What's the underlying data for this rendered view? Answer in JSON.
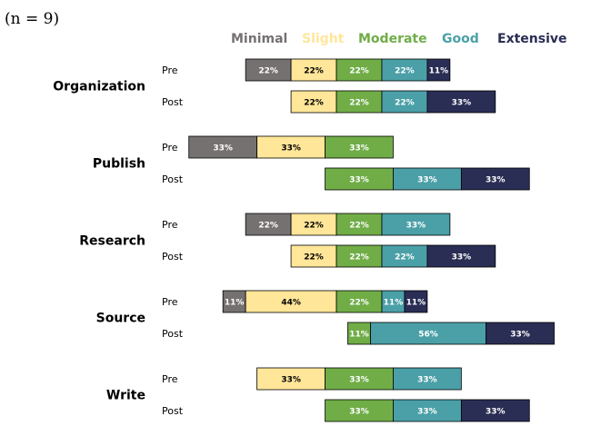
{
  "chart_data": {
    "type": "bar",
    "orientation": "horizontal",
    "stacked": true,
    "diverging": true,
    "sample_size_label": "(n = 9)",
    "categories": [
      "Minimal",
      "Slight",
      "Moderate",
      "Good",
      "Extensive"
    ],
    "colors": {
      "Minimal": "#767171",
      "Slight": "#FFE699",
      "Moderate": "#70AD47",
      "Good": "#4BA0A8",
      "Extensive": "#2A2D54"
    },
    "label_colors": {
      "Minimal": "#ffffff",
      "Slight": "#000000",
      "Moderate": "#ffffff",
      "Good": "#ffffff",
      "Extensive": "#ffffff"
    },
    "legend_placement": "top",
    "groups": [
      {
        "name": "Organization",
        "rows": [
          {
            "label": "Pre",
            "values": [
              22,
              22,
              22,
              22,
              11
            ]
          },
          {
            "label": "Post",
            "values": [
              0,
              22,
              22,
              22,
              33
            ]
          }
        ]
      },
      {
        "name": "Publish",
        "rows": [
          {
            "label": "Pre",
            "values": [
              33,
              33,
              33,
              0,
              0
            ]
          },
          {
            "label": "Post",
            "values": [
              0,
              0,
              33,
              33,
              33
            ]
          }
        ]
      },
      {
        "name": "Research",
        "rows": [
          {
            "label": "Pre",
            "values": [
              22,
              22,
              22,
              33,
              0
            ]
          },
          {
            "label": "Post",
            "values": [
              0,
              22,
              22,
              22,
              33
            ]
          }
        ]
      },
      {
        "name": "Source",
        "rows": [
          {
            "label": "Pre",
            "values": [
              11,
              44,
              22,
              11,
              11
            ]
          },
          {
            "label": "Post",
            "values": [
              0,
              0,
              11,
              56,
              33
            ]
          }
        ]
      },
      {
        "name": "Write",
        "rows": [
          {
            "label": "Pre",
            "values": [
              0,
              33,
              33,
              33,
              0
            ]
          },
          {
            "label": "Post",
            "values": [
              0,
              0,
              33,
              33,
              33
            ]
          }
        ]
      }
    ],
    "value_suffix": "%"
  }
}
